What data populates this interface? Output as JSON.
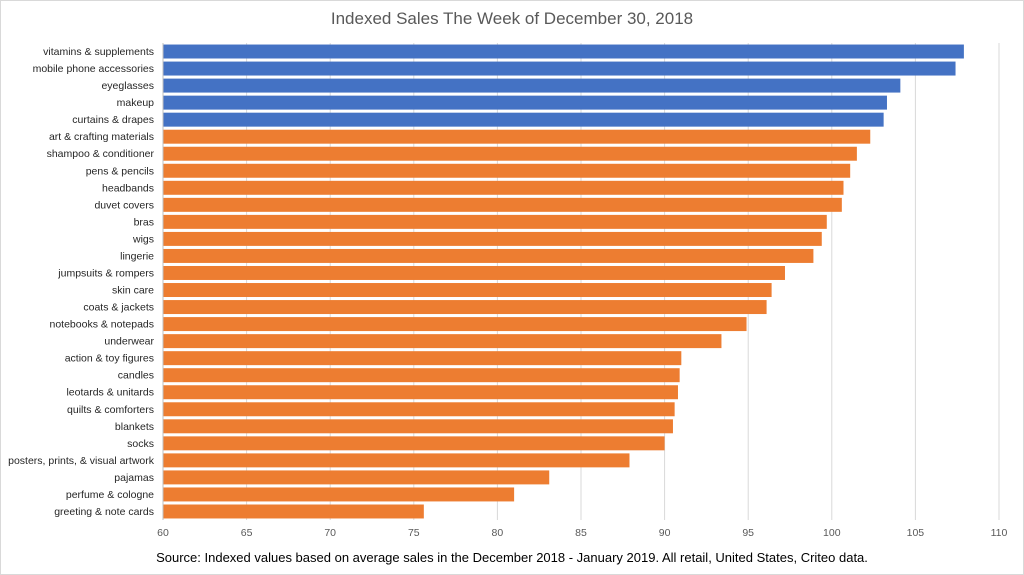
{
  "chart_data": {
    "type": "bar",
    "orientation": "horizontal",
    "title": "Indexed Sales The Week of December 30, 2018",
    "source_note": "Source: Indexed values based on average sales in the December 2018 - January 2019.  All retail, United States, Criteo data.",
    "xlim": [
      60,
      110
    ],
    "xticks": [
      60,
      65,
      70,
      75,
      80,
      85,
      90,
      95,
      100,
      105,
      110
    ],
    "grid": "vertical",
    "colors": {
      "top_group": "#4472c4",
      "other": "#ed7d31"
    },
    "categories": [
      "vitamins & supplements",
      "mobile phone accessories",
      "eyeglasses",
      "makeup",
      "curtains & drapes",
      "art & crafting materials",
      "shampoo & conditioner",
      "pens & pencils",
      "headbands",
      "duvet covers",
      "bras",
      "wigs",
      "lingerie",
      "jumpsuits & rompers",
      "skin care",
      "coats & jackets",
      "notebooks & notepads",
      "underwear",
      "action & toy figures",
      "candles",
      "leotards & unitards",
      "quilts & comforters",
      "blankets",
      "socks",
      "posters, prints, & visual artwork",
      "pajamas",
      "perfume & cologne",
      "greeting & note cards"
    ],
    "values": [
      107.9,
      107.4,
      104.1,
      103.3,
      103.1,
      102.3,
      101.5,
      101.1,
      100.7,
      100.6,
      99.7,
      99.4,
      98.9,
      97.2,
      96.4,
      96.1,
      94.9,
      93.4,
      91.0,
      90.9,
      90.8,
      90.6,
      90.5,
      90.0,
      87.9,
      83.1,
      81.0,
      75.6
    ],
    "highlight_count": 5
  }
}
